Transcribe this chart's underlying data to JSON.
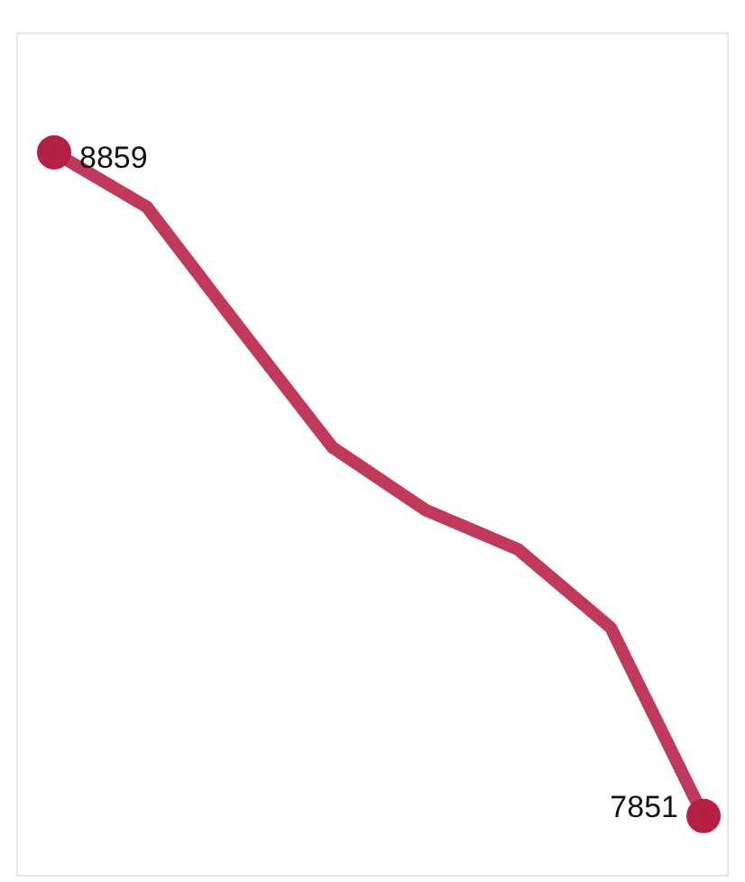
{
  "chart_data": {
    "type": "line",
    "categories": [
      null,
      null,
      null,
      null,
      null,
      null,
      null,
      null
    ],
    "series": [
      {
        "color": "#c0395a",
        "values": [
          8859,
          8776,
          8592,
          8411,
          8316,
          8256,
          8137,
          7851
        ],
        "value_labels": [
          "8859",
          null,
          null,
          null,
          null,
          null,
          null,
          "7851"
        ]
      }
    ],
    "legend": false,
    "tick_labels": false,
    "line_style": "solid"
  }
}
